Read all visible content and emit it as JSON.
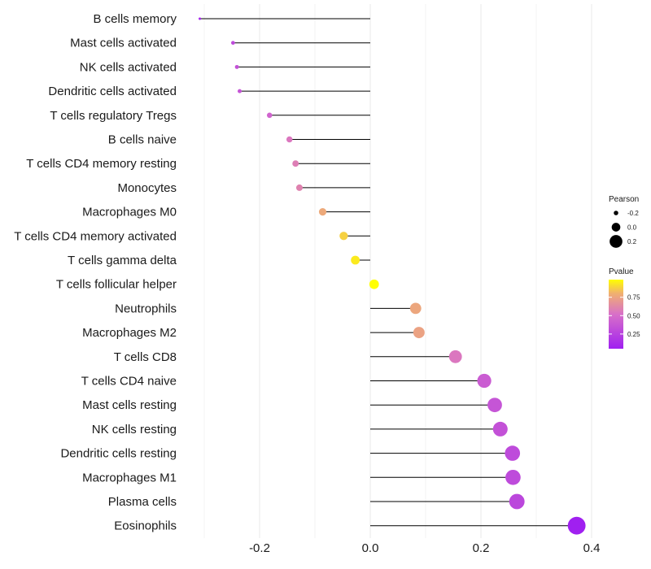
{
  "chart_data": {
    "type": "lollipop",
    "title": "",
    "xlabel": "",
    "ylabel": "",
    "xlim": [
      -0.31,
      0.4
    ],
    "x_ticks": [
      -0.2,
      0.0,
      0.2,
      0.4
    ],
    "x_tick_labels": [
      "-0.2",
      "0.0",
      "0.2",
      "0.4"
    ],
    "grid": "vertical",
    "categories": [
      "B cells memory",
      "Mast cells activated",
      "NK cells activated",
      "Dendritic cells activated",
      "T cells regulatory  Tregs ",
      "B cells naive",
      "T cells CD4 memory resting",
      "Monocytes",
      "Macrophages M0",
      "T cells CD4 memory activated",
      "T cells gamma delta",
      "T cells follicular helper",
      "Neutrophils",
      "Macrophages M2",
      "T cells CD8",
      "T cells CD4 naive",
      "Mast cells resting",
      "NK cells resting",
      "Dendritic cells resting",
      "Macrophages M1",
      "Plasma cells",
      "Eosinophils"
    ],
    "pearson": [
      -0.308,
      -0.248,
      -0.241,
      -0.236,
      -0.182,
      -0.146,
      -0.135,
      -0.128,
      -0.086,
      -0.048,
      -0.027,
      0.007,
      0.082,
      0.088,
      0.154,
      0.206,
      0.225,
      0.235,
      0.257,
      0.258,
      0.265,
      0.373
    ],
    "pvalue": [
      0.08,
      0.3,
      0.34,
      0.36,
      0.45,
      0.55,
      0.58,
      0.6,
      0.77,
      0.88,
      0.94,
      0.99,
      0.76,
      0.74,
      0.55,
      0.4,
      0.36,
      0.34,
      0.3,
      0.3,
      0.28,
      0.05
    ],
    "legend_position": "right",
    "legend": {
      "size_title": "Pearson",
      "size_labels": [
        "-0.2",
        "0.0",
        "0.2"
      ],
      "size_values": [
        -0.2,
        0.0,
        0.2
      ],
      "color_title": "Pvalue",
      "color_labels": [
        "0.75",
        "0.50",
        "0.25"
      ],
      "color_values": [
        0.75,
        0.5,
        0.25
      ],
      "color_range": [
        0.05,
        0.99
      ]
    },
    "colors": {
      "low": "#A020F0",
      "mid": "#D870C8",
      "high": "#FFFF00",
      "stem": "#000000",
      "grid": "#EBEBEB",
      "text": "#1A1A1A"
    }
  }
}
